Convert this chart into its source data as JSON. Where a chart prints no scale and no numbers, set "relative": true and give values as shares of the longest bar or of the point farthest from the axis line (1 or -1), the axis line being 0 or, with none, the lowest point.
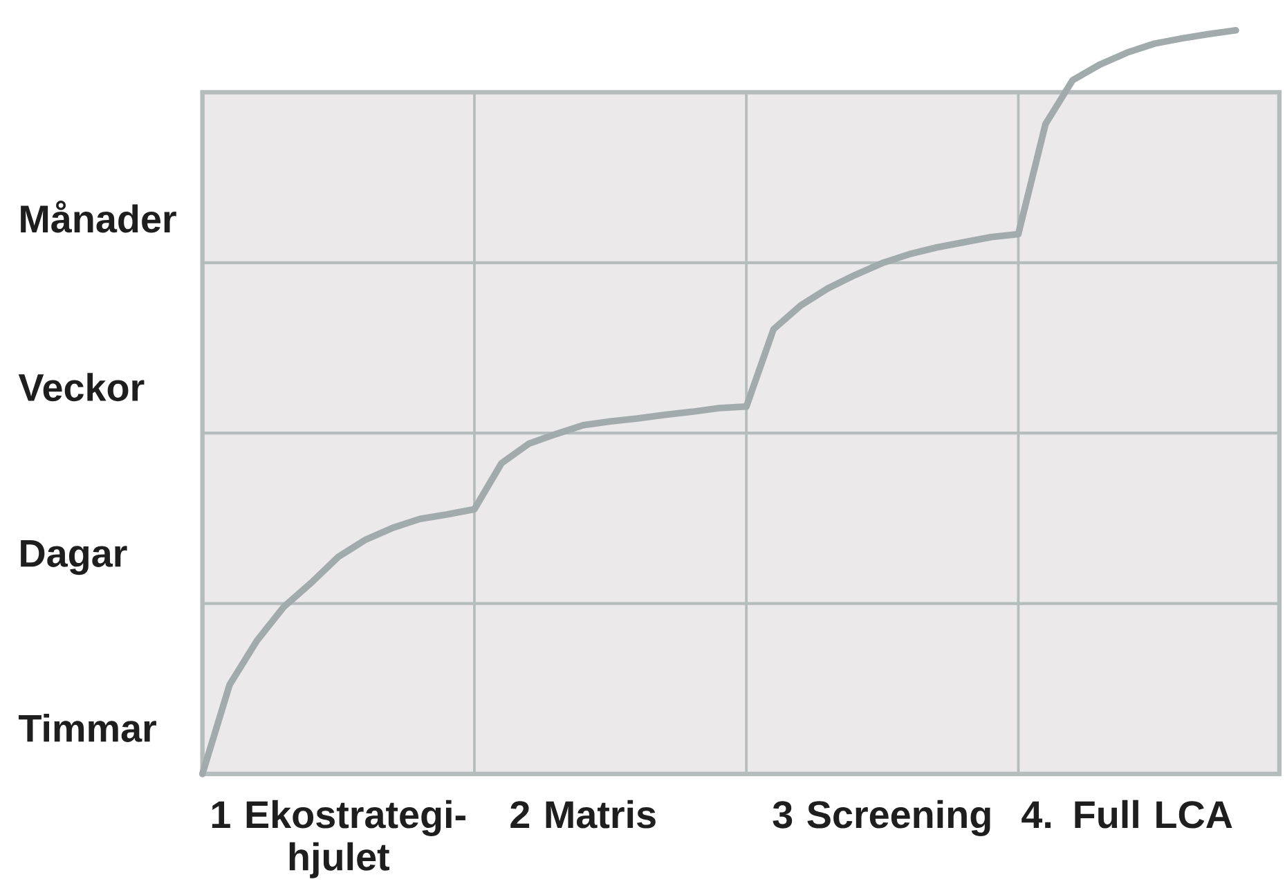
{
  "chart_data": {
    "type": "line",
    "relative": true,
    "categories": [
      null,
      null,
      null,
      null,
      null,
      "1 Ekostrategi-hjulet",
      null,
      null,
      null,
      null,
      null,
      null,
      null,
      null,
      "2 Matris",
      null,
      null,
      null,
      null,
      null,
      null,
      null,
      null,
      null,
      null,
      "3 Screening",
      null,
      null,
      null,
      null,
      null,
      null,
      null,
      null,
      "4. Full LCA",
      null,
      null,
      null,
      null
    ],
    "annotations": [
      "Timmar",
      "Dagar",
      "Veckor",
      "Månader"
    ],
    "grid": true,
    "series": [
      {
        "color": "#a2abab",
        "values": [
          0,
          0.12,
          0.179,
          0.225,
          0.257,
          0.292,
          0.315,
          0.331,
          0.343,
          0.349,
          0.356,
          0.418,
          0.444,
          0.457,
          0.469,
          0.474,
          0.478,
          0.483,
          0.487,
          0.492,
          0.494,
          0.598,
          0.63,
          0.653,
          0.671,
          0.687,
          0.699,
          0.708,
          0.715,
          0.722,
          0.726,
          0.874,
          0.933,
          0.954,
          0.97,
          0.982,
          0.989,
          0.995,
          1
        ]
      }
    ]
  }
}
